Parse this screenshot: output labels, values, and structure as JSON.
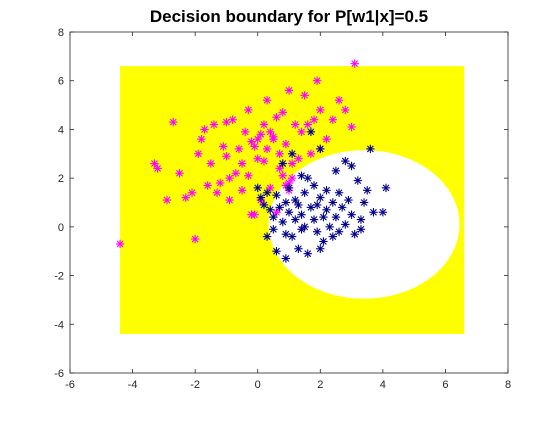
{
  "chart_data": {
    "type": "scatter",
    "title": "Decision boundary for P[w1|x]=0.5",
    "xlabel": "",
    "ylabel": "",
    "xlim": [
      -6,
      8
    ],
    "ylim": [
      -6,
      8
    ],
    "x_ticks": [
      -6,
      -4,
      -2,
      0,
      2,
      4,
      6,
      8
    ],
    "y_ticks": [
      -6,
      -4,
      -2,
      0,
      2,
      4,
      6,
      8
    ],
    "grid": false,
    "legend": "none",
    "region": {
      "name": "",
      "color": "#ffff00",
      "x_range": [
        -4.4,
        6.6
      ],
      "y_range": [
        -4.4,
        6.6
      ],
      "excluded_circle": {
        "center": [
          3.4,
          0.1
        ],
        "radius": 3.05
      }
    },
    "series": [
      {
        "name": "",
        "color": "#ff00ff",
        "marker": "*",
        "points": [
          [
            -4.4,
            -0.7
          ],
          [
            -3.3,
            2.6
          ],
          [
            -3.2,
            2.4
          ],
          [
            -2.9,
            1.1
          ],
          [
            -2.7,
            4.3
          ],
          [
            -2.5,
            2.2
          ],
          [
            -2.3,
            1.2
          ],
          [
            -2.1,
            1.4
          ],
          [
            -2.0,
            -0.5
          ],
          [
            -1.9,
            3.0
          ],
          [
            -1.8,
            3.6
          ],
          [
            -1.7,
            4.0
          ],
          [
            -1.6,
            1.7
          ],
          [
            -1.5,
            2.6
          ],
          [
            -1.4,
            4.2
          ],
          [
            -1.3,
            1.4
          ],
          [
            -1.2,
            1.8
          ],
          [
            -1.1,
            3.3
          ],
          [
            -1.0,
            2.9
          ],
          [
            -1.0,
            4.3
          ],
          [
            -0.9,
            2.0
          ],
          [
            -0.9,
            1.1
          ],
          [
            -0.8,
            4.4
          ],
          [
            -0.7,
            2.2
          ],
          [
            -0.6,
            3.2
          ],
          [
            -0.5,
            1.5
          ],
          [
            -0.5,
            2.6
          ],
          [
            -0.4,
            3.9
          ],
          [
            -0.3,
            4.8
          ],
          [
            -0.3,
            2.1
          ],
          [
            -0.2,
            3.5
          ],
          [
            -0.2,
            0.5
          ],
          [
            -0.1,
            3.3
          ],
          [
            0.0,
            3.6
          ],
          [
            0.0,
            2.8
          ],
          [
            0.1,
            3.8
          ],
          [
            0.1,
            1.1
          ],
          [
            0.2,
            4.2
          ],
          [
            0.2,
            2.7
          ],
          [
            0.3,
            3.2
          ],
          [
            0.3,
            5.2
          ],
          [
            0.4,
            1.6
          ],
          [
            0.4,
            3.9
          ],
          [
            0.5,
            3.6
          ],
          [
            0.5,
            3.7
          ],
          [
            0.6,
            0.6
          ],
          [
            0.6,
            4.5
          ],
          [
            0.7,
            2.4
          ],
          [
            0.7,
            3.0
          ],
          [
            0.8,
            4.7
          ],
          [
            0.9,
            1.7
          ],
          [
            0.9,
            3.4
          ],
          [
            1.0,
            5.6
          ],
          [
            1.0,
            1.5
          ],
          [
            1.1,
            2.6
          ],
          [
            1.2,
            4.2
          ],
          [
            1.3,
            2.8
          ],
          [
            1.4,
            3.9
          ],
          [
            1.5,
            5.4
          ],
          [
            1.6,
            4.2
          ],
          [
            1.7,
            3.0
          ],
          [
            1.8,
            4.4
          ],
          [
            1.9,
            6.0
          ],
          [
            2.0,
            3.2
          ],
          [
            2.2,
            3.6
          ],
          [
            2.4,
            4.4
          ],
          [
            2.6,
            5.2
          ],
          [
            2.8,
            4.8
          ],
          [
            3.0,
            4.1
          ],
          [
            3.1,
            6.7
          ],
          [
            1.1,
            2.0
          ],
          [
            1.0,
            1.8
          ],
          [
            0.8,
            2.1
          ],
          [
            -0.1,
            0.5
          ],
          [
            2.0,
            4.8
          ]
        ]
      },
      {
        "name": "",
        "color": "#00008b",
        "marker": "*",
        "points": [
          [
            0.0,
            1.6
          ],
          [
            0.1,
            1.2
          ],
          [
            0.2,
            0.9
          ],
          [
            0.3,
            1.4
          ],
          [
            0.4,
            0.7
          ],
          [
            0.5,
            0.4
          ],
          [
            0.5,
            -0.1
          ],
          [
            0.6,
            1.3
          ],
          [
            0.7,
            0.8
          ],
          [
            0.8,
            0.2
          ],
          [
            0.9,
            -0.3
          ],
          [
            0.9,
            1.0
          ],
          [
            1.0,
            0.6
          ],
          [
            1.0,
            1.6
          ],
          [
            1.1,
            -0.4
          ],
          [
            1.2,
            0.3
          ],
          [
            1.2,
            1.1
          ],
          [
            1.3,
            0.9
          ],
          [
            1.4,
            -0.1
          ],
          [
            1.4,
            0.5
          ],
          [
            1.5,
            1.4
          ],
          [
            1.5,
            0.0
          ],
          [
            1.6,
            2.0
          ],
          [
            1.6,
            -1.1
          ],
          [
            1.7,
            0.8
          ],
          [
            1.8,
            0.3
          ],
          [
            1.8,
            1.7
          ],
          [
            1.9,
            -0.2
          ],
          [
            1.9,
            0.9
          ],
          [
            2.0,
            3.2
          ],
          [
            2.0,
            1.2
          ],
          [
            2.1,
            0.4
          ],
          [
            2.1,
            -0.6
          ],
          [
            2.2,
            0.7
          ],
          [
            2.2,
            1.5
          ],
          [
            2.3,
            0.0
          ],
          [
            2.4,
            1.0
          ],
          [
            2.4,
            -0.4
          ],
          [
            2.5,
            0.4
          ],
          [
            2.6,
            1.4
          ],
          [
            2.6,
            -0.2
          ],
          [
            2.7,
            0.8
          ],
          [
            2.8,
            2.7
          ],
          [
            2.8,
            0.1
          ],
          [
            2.9,
            1.1
          ],
          [
            3.0,
            0.5
          ],
          [
            3.0,
            2.5
          ],
          [
            3.1,
            -0.3
          ],
          [
            3.2,
            1.9
          ],
          [
            3.3,
            0.3
          ],
          [
            3.4,
            1.0
          ],
          [
            3.5,
            1.5
          ],
          [
            3.6,
            3.2
          ],
          [
            3.7,
            0.6
          ],
          [
            4.1,
            1.6
          ],
          [
            4.0,
            0.6
          ],
          [
            0.3,
            -0.4
          ],
          [
            0.6,
            -1.0
          ],
          [
            0.9,
            -1.3
          ],
          [
            1.3,
            -0.9
          ],
          [
            1.7,
            3.9
          ],
          [
            2.0,
            -0.9
          ],
          [
            1.1,
            3.0
          ],
          [
            1.4,
            2.1
          ],
          [
            0.8,
            2.6
          ],
          [
            2.5,
            2.3
          ],
          [
            3.3,
            -0.1
          ]
        ]
      }
    ]
  }
}
